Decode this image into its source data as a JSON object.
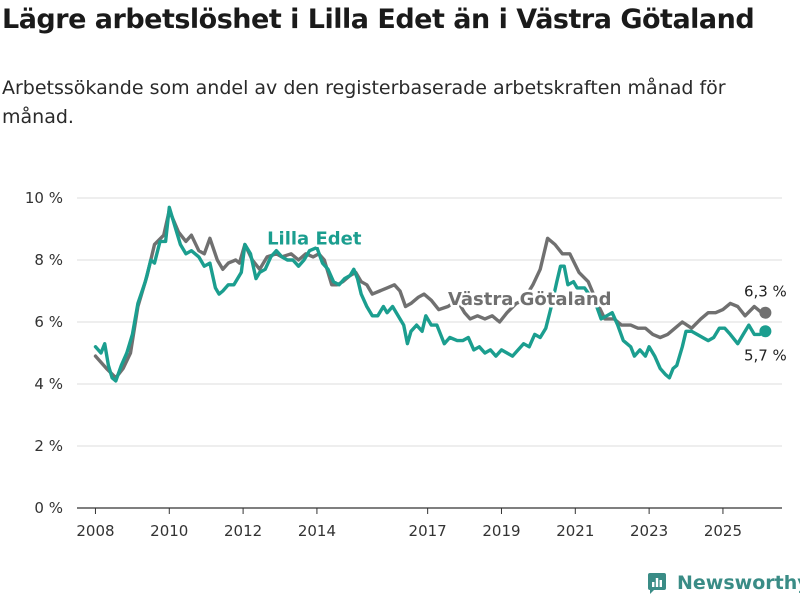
{
  "title": "Lägre arbetslöshet i Lilla Edet än i Västra Götaland",
  "subtitle": "Arbetssökande som andel av den registerbaserade arbetskraften månad för månad.",
  "brand": {
    "name": "Newsworthy",
    "icon": "newsworthy-logo-icon",
    "color": "#3a8c86"
  },
  "chart_data": {
    "type": "line",
    "title": "",
    "xlabel": "",
    "ylabel": "",
    "ylim": [
      0,
      10
    ],
    "xlim": [
      2007.5,
      2026.6
    ],
    "y_ticks": [
      0,
      2,
      4,
      6,
      8,
      10
    ],
    "y_tick_labels": [
      "0 %",
      "2 %",
      "4 %",
      "6 %",
      "8 %",
      "10 %"
    ],
    "x_ticks": [
      2008,
      2010,
      2012,
      2014,
      2017,
      2019,
      2021,
      2023,
      2025
    ],
    "x_tick_labels": [
      "2008",
      "2010",
      "2012",
      "2014",
      "2017",
      "2019",
      "2021",
      "2023",
      "2025"
    ],
    "grid": true,
    "series": [
      {
        "name": "Västra Götaland",
        "color": "#707070",
        "label": "Västra Götaland",
        "end_label": "6,3 %",
        "points": [
          [
            2008.0,
            4.9
          ],
          [
            2008.3,
            4.5
          ],
          [
            2008.55,
            4.2
          ],
          [
            2008.75,
            4.5
          ],
          [
            2008.95,
            5.0
          ],
          [
            2009.15,
            6.5
          ],
          [
            2009.4,
            7.5
          ],
          [
            2009.6,
            8.5
          ],
          [
            2009.85,
            8.8
          ],
          [
            2010.0,
            9.6
          ],
          [
            2010.25,
            8.9
          ],
          [
            2010.45,
            8.6
          ],
          [
            2010.6,
            8.8
          ],
          [
            2010.8,
            8.3
          ],
          [
            2010.95,
            8.2
          ],
          [
            2011.1,
            8.7
          ],
          [
            2011.3,
            8.0
          ],
          [
            2011.45,
            7.7
          ],
          [
            2011.6,
            7.9
          ],
          [
            2011.8,
            8.0
          ],
          [
            2011.9,
            7.9
          ],
          [
            2012.05,
            8.5
          ],
          [
            2012.25,
            8.0
          ],
          [
            2012.45,
            7.7
          ],
          [
            2012.65,
            8.1
          ],
          [
            2012.9,
            8.2
          ],
          [
            2013.05,
            8.1
          ],
          [
            2013.3,
            8.2
          ],
          [
            2013.5,
            8.0
          ],
          [
            2013.7,
            8.2
          ],
          [
            2013.9,
            8.1
          ],
          [
            2014.05,
            8.2
          ],
          [
            2014.2,
            8.0
          ],
          [
            2014.4,
            7.2
          ],
          [
            2014.55,
            7.2
          ],
          [
            2014.7,
            7.3
          ],
          [
            2014.9,
            7.5
          ],
          [
            2015.05,
            7.6
          ],
          [
            2015.2,
            7.3
          ],
          [
            2015.35,
            7.2
          ],
          [
            2015.5,
            6.9
          ],
          [
            2015.7,
            7.0
          ],
          [
            2015.9,
            7.1
          ],
          [
            2016.1,
            7.2
          ],
          [
            2016.25,
            7.0
          ],
          [
            2016.4,
            6.5
          ],
          [
            2016.55,
            6.6
          ],
          [
            2016.75,
            6.8
          ],
          [
            2016.9,
            6.9
          ],
          [
            2017.1,
            6.7
          ],
          [
            2017.3,
            6.4
          ],
          [
            2017.55,
            6.5
          ],
          [
            2017.8,
            6.7
          ],
          [
            2018.0,
            6.3
          ],
          [
            2018.15,
            6.1
          ],
          [
            2018.35,
            6.2
          ],
          [
            2018.55,
            6.1
          ],
          [
            2018.75,
            6.2
          ],
          [
            2018.95,
            6.0
          ],
          [
            2019.15,
            6.3
          ],
          [
            2019.4,
            6.6
          ],
          [
            2019.6,
            6.7
          ],
          [
            2019.85,
            7.2
          ],
          [
            2020.05,
            7.7
          ],
          [
            2020.25,
            8.7
          ],
          [
            2020.45,
            8.5
          ],
          [
            2020.65,
            8.2
          ],
          [
            2020.85,
            8.2
          ],
          [
            2021.1,
            7.6
          ],
          [
            2021.35,
            7.3
          ],
          [
            2021.6,
            6.6
          ],
          [
            2021.8,
            6.1
          ],
          [
            2022.05,
            6.1
          ],
          [
            2022.25,
            5.9
          ],
          [
            2022.5,
            5.9
          ],
          [
            2022.7,
            5.8
          ],
          [
            2022.9,
            5.8
          ],
          [
            2023.1,
            5.6
          ],
          [
            2023.3,
            5.5
          ],
          [
            2023.5,
            5.6
          ],
          [
            2023.7,
            5.8
          ],
          [
            2023.9,
            6.0
          ],
          [
            2024.15,
            5.8
          ],
          [
            2024.4,
            6.1
          ],
          [
            2024.6,
            6.3
          ],
          [
            2024.8,
            6.3
          ],
          [
            2025.0,
            6.4
          ],
          [
            2025.2,
            6.6
          ],
          [
            2025.4,
            6.5
          ],
          [
            2025.6,
            6.2
          ],
          [
            2025.85,
            6.5
          ],
          [
            2026.05,
            6.3
          ],
          [
            2026.15,
            6.3
          ]
        ]
      },
      {
        "name": "Lilla Edet",
        "color": "#1b9e8f",
        "label": "Lilla Edet",
        "end_label": "5,7 %",
        "points": [
          [
            2008.0,
            5.2
          ],
          [
            2008.15,
            5.0
          ],
          [
            2008.25,
            5.3
          ],
          [
            2008.35,
            4.6
          ],
          [
            2008.45,
            4.2
          ],
          [
            2008.55,
            4.1
          ],
          [
            2008.7,
            4.6
          ],
          [
            2008.85,
            5.0
          ],
          [
            2009.0,
            5.6
          ],
          [
            2009.15,
            6.6
          ],
          [
            2009.35,
            7.3
          ],
          [
            2009.5,
            8.0
          ],
          [
            2009.6,
            7.9
          ],
          [
            2009.75,
            8.6
          ],
          [
            2009.9,
            8.6
          ],
          [
            2010.0,
            9.7
          ],
          [
            2010.15,
            9.1
          ],
          [
            2010.3,
            8.5
          ],
          [
            2010.45,
            8.2
          ],
          [
            2010.6,
            8.3
          ],
          [
            2010.8,
            8.1
          ],
          [
            2010.95,
            7.8
          ],
          [
            2011.1,
            7.9
          ],
          [
            2011.25,
            7.1
          ],
          [
            2011.35,
            6.9
          ],
          [
            2011.45,
            7.0
          ],
          [
            2011.6,
            7.2
          ],
          [
            2011.75,
            7.2
          ],
          [
            2011.95,
            7.6
          ],
          [
            2012.05,
            8.5
          ],
          [
            2012.2,
            8.2
          ],
          [
            2012.35,
            7.4
          ],
          [
            2012.45,
            7.6
          ],
          [
            2012.6,
            7.7
          ],
          [
            2012.75,
            8.1
          ],
          [
            2012.9,
            8.3
          ],
          [
            2013.05,
            8.1
          ],
          [
            2013.2,
            8.0
          ],
          [
            2013.35,
            8.0
          ],
          [
            2013.5,
            7.8
          ],
          [
            2013.65,
            8.0
          ],
          [
            2013.8,
            8.3
          ],
          [
            2014.0,
            8.4
          ],
          [
            2014.15,
            7.9
          ],
          [
            2014.3,
            7.7
          ],
          [
            2014.45,
            7.3
          ],
          [
            2014.6,
            7.2
          ],
          [
            2014.75,
            7.4
          ],
          [
            2014.9,
            7.5
          ],
          [
            2015.0,
            7.7
          ],
          [
            2015.1,
            7.4
          ],
          [
            2015.2,
            6.9
          ],
          [
            2015.35,
            6.5
          ],
          [
            2015.5,
            6.2
          ],
          [
            2015.65,
            6.2
          ],
          [
            2015.8,
            6.5
          ],
          [
            2015.9,
            6.3
          ],
          [
            2016.05,
            6.5
          ],
          [
            2016.2,
            6.2
          ],
          [
            2016.35,
            5.9
          ],
          [
            2016.45,
            5.3
          ],
          [
            2016.55,
            5.7
          ],
          [
            2016.7,
            5.9
          ],
          [
            2016.85,
            5.7
          ],
          [
            2016.95,
            6.2
          ],
          [
            2017.1,
            5.9
          ],
          [
            2017.25,
            5.9
          ],
          [
            2017.45,
            5.3
          ],
          [
            2017.6,
            5.5
          ],
          [
            2017.8,
            5.4
          ],
          [
            2017.95,
            5.4
          ],
          [
            2018.1,
            5.5
          ],
          [
            2018.25,
            5.1
          ],
          [
            2018.4,
            5.2
          ],
          [
            2018.55,
            5.0
          ],
          [
            2018.7,
            5.1
          ],
          [
            2018.85,
            4.9
          ],
          [
            2019.0,
            5.1
          ],
          [
            2019.15,
            5.0
          ],
          [
            2019.3,
            4.9
          ],
          [
            2019.45,
            5.1
          ],
          [
            2019.6,
            5.3
          ],
          [
            2019.75,
            5.2
          ],
          [
            2019.9,
            5.6
          ],
          [
            2020.05,
            5.5
          ],
          [
            2020.2,
            5.8
          ],
          [
            2020.35,
            6.5
          ],
          [
            2020.5,
            7.3
          ],
          [
            2020.6,
            7.8
          ],
          [
            2020.7,
            7.8
          ],
          [
            2020.8,
            7.2
          ],
          [
            2020.95,
            7.3
          ],
          [
            2021.05,
            7.1
          ],
          [
            2021.25,
            7.1
          ],
          [
            2021.55,
            6.6
          ],
          [
            2021.7,
            6.1
          ],
          [
            2021.85,
            6.2
          ],
          [
            2022.0,
            6.3
          ],
          [
            2022.15,
            5.9
          ],
          [
            2022.3,
            5.4
          ],
          [
            2022.5,
            5.2
          ],
          [
            2022.6,
            4.9
          ],
          [
            2022.75,
            5.1
          ],
          [
            2022.9,
            4.9
          ],
          [
            2023.0,
            5.2
          ],
          [
            2023.15,
            4.9
          ],
          [
            2023.3,
            4.5
          ],
          [
            2023.45,
            4.3
          ],
          [
            2023.55,
            4.2
          ],
          [
            2023.65,
            4.5
          ],
          [
            2023.75,
            4.6
          ],
          [
            2023.9,
            5.2
          ],
          [
            2024.0,
            5.7
          ],
          [
            2024.15,
            5.7
          ],
          [
            2024.3,
            5.6
          ],
          [
            2024.45,
            5.5
          ],
          [
            2024.6,
            5.4
          ],
          [
            2024.75,
            5.5
          ],
          [
            2024.9,
            5.8
          ],
          [
            2025.05,
            5.8
          ],
          [
            2025.2,
            5.6
          ],
          [
            2025.4,
            5.3
          ],
          [
            2025.55,
            5.6
          ],
          [
            2025.7,
            5.9
          ],
          [
            2025.85,
            5.6
          ],
          [
            2026.0,
            5.6
          ],
          [
            2026.15,
            5.7
          ]
        ]
      }
    ]
  }
}
